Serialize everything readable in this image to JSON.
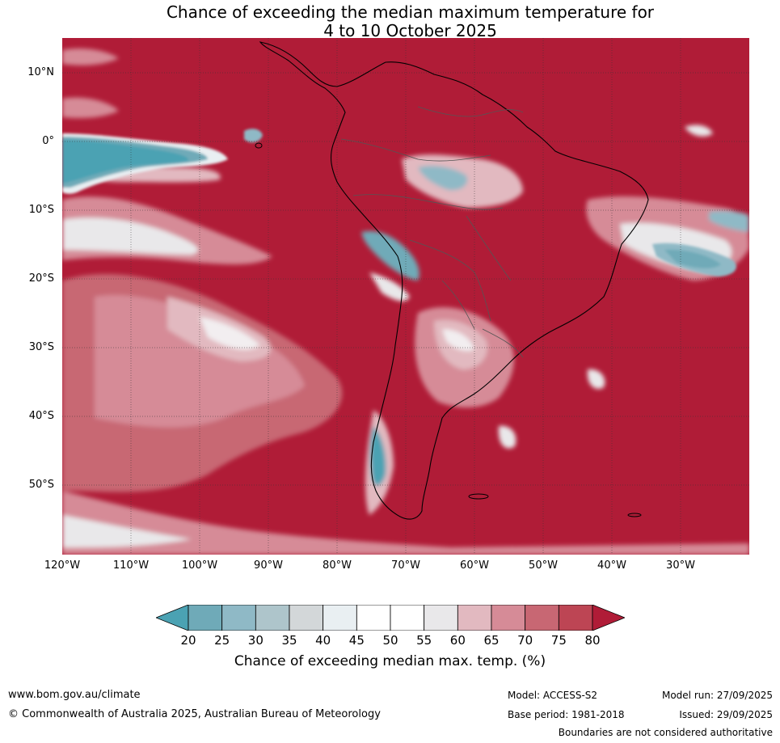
{
  "title": {
    "line1": "Chance of exceeding the median maximum temperature for",
    "line2": "4 to 10 October 2025"
  },
  "map": {
    "region": "South America",
    "lat_labels": [
      "10°N",
      "0°",
      "10°S",
      "20°S",
      "30°S",
      "40°S",
      "50°S"
    ],
    "lon_labels": [
      "120°W",
      "110°W",
      "100°W",
      "90°W",
      "80°W",
      "70°W",
      "60°W",
      "50°W",
      "40°W",
      "30°W"
    ],
    "background_color": "#b01c37"
  },
  "colorbar": {
    "ticks": [
      "20",
      "25",
      "30",
      "35",
      "40",
      "45",
      "50",
      "55",
      "60",
      "65",
      "70",
      "75",
      "80"
    ],
    "colors": [
      "#4ba2b3",
      "#6faab8",
      "#8fb9c6",
      "#aec5cb",
      "#d3d7d9",
      "#e9eff2",
      "#ffffff",
      "#ffffff",
      "#e9e8ea",
      "#e2b9c0",
      "#d68b97",
      "#c86773",
      "#bd4554",
      "#b01c37"
    ],
    "label": "Chance of exceeding median max. temp. (%)"
  },
  "footer": {
    "website": "www.bom.gov.au/climate",
    "copyright": "© Commonwealth of Australia 2025, Australian Bureau of Meteorology",
    "model": "Model: ACCESS-S2",
    "base_period": "Base period: 1981-2018",
    "model_run": "Model run: 27/09/2025",
    "issued": "Issued: 29/09/2025",
    "disclaimer": "Boundaries are not considered authoritative"
  }
}
